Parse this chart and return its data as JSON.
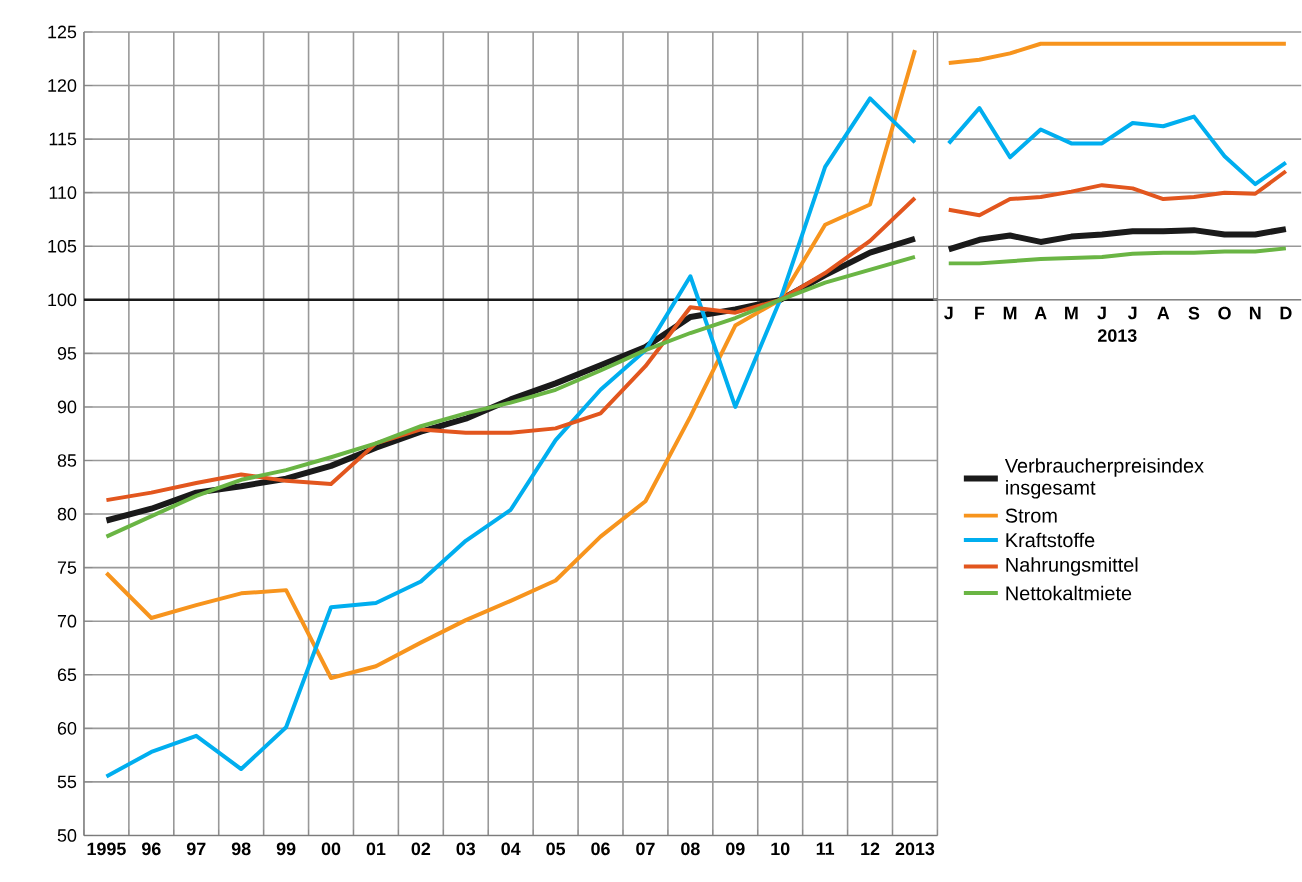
{
  "chart_data": [
    {
      "type": "line",
      "categories": [
        "1995",
        "96",
        "97",
        "98",
        "99",
        "00",
        "01",
        "02",
        "03",
        "04",
        "05",
        "06",
        "07",
        "08",
        "09",
        "10",
        "11",
        "12",
        "2013"
      ],
      "ylim": [
        50,
        125
      ],
      "yticks": [
        50,
        55,
        60,
        65,
        70,
        75,
        80,
        85,
        90,
        95,
        100,
        105,
        110,
        115,
        120,
        125
      ],
      "grid": true,
      "legend": "right",
      "marker": "none",
      "line_style": "solid",
      "ref_lines": [
        {
          "axis": "y",
          "value": 100,
          "color": "#1a1a1a"
        }
      ],
      "series": [
        {
          "name": "Verbraucherpreisindex insgesamt",
          "color": "#1a1a1a",
          "values": [
            79.4,
            80.5,
            82.0,
            82.6,
            83.3,
            84.5,
            86.2,
            87.7,
            88.9,
            90.7,
            92.2,
            93.9,
            95.6,
            98.4,
            99.1,
            100,
            102.3,
            104.4,
            105.7
          ]
        },
        {
          "name": "Strom",
          "color": "#f7941d",
          "values": [
            74.5,
            70.3,
            71.5,
            72.6,
            72.9,
            64.7,
            65.8,
            68.0,
            70.1,
            71.9,
            73.8,
            77.9,
            81.2,
            89.1,
            97.6,
            100,
            107.0,
            108.9,
            123.3
          ]
        },
        {
          "name": "Kraftstoffe",
          "color": "#00aeef",
          "values": [
            55.5,
            57.8,
            59.3,
            56.2,
            60.1,
            71.3,
            71.7,
            73.7,
            77.5,
            80.4,
            86.9,
            91.6,
            95.3,
            102.2,
            90.0,
            100,
            112.4,
            118.8,
            114.7
          ]
        },
        {
          "name": "Nahrungsmittel",
          "color": "#e2561e",
          "values": [
            81.3,
            82.0,
            82.9,
            83.7,
            83.1,
            82.8,
            86.6,
            87.9,
            87.6,
            87.6,
            88.0,
            89.4,
            93.8,
            99.3,
            98.8,
            100,
            102.5,
            105.5,
            109.5
          ]
        },
        {
          "name": "Nettokaltmiete",
          "color": "#6ab544",
          "values": [
            77.9,
            79.8,
            81.7,
            83.2,
            84.1,
            85.3,
            86.6,
            88.2,
            89.4,
            90.4,
            91.6,
            93.4,
            95.3,
            96.9,
            98.3,
            100,
            101.6,
            102.8,
            104.0
          ]
        }
      ]
    },
    {
      "type": "line",
      "categories": [
        "J",
        "F",
        "M",
        "A",
        "M",
        "J",
        "J",
        "A",
        "S",
        "O",
        "N",
        "D"
      ],
      "xlabel": "2013",
      "ylim": [
        100,
        125
      ],
      "yticks": [
        100,
        105,
        110,
        115,
        120,
        125
      ],
      "grid": "y",
      "tick_labels": "x",
      "marker": "none",
      "line_style": "solid",
      "series": [
        {
          "color": "#f7941d",
          "values": [
            122.1,
            122.4,
            123.0,
            123.9,
            123.9,
            123.9,
            123.9,
            123.9,
            123.9,
            123.9,
            123.9,
            123.9
          ]
        },
        {
          "color": "#00aeef",
          "values": [
            114.6,
            117.9,
            113.3,
            115.9,
            114.6,
            114.6,
            116.5,
            116.2,
            117.1,
            113.4,
            110.8,
            112.8
          ]
        },
        {
          "color": "#e2561e",
          "values": [
            108.4,
            107.9,
            109.4,
            109.6,
            110.1,
            110.7,
            110.4,
            109.4,
            109.6,
            110.0,
            109.9,
            112.0
          ]
        },
        {
          "color": "#1a1a1a",
          "values": [
            104.7,
            105.6,
            106.0,
            105.4,
            105.9,
            106.1,
            106.4,
            106.4,
            106.5,
            106.1,
            106.1,
            106.6
          ]
        },
        {
          "color": "#6ab544",
          "values": [
            103.4,
            103.4,
            103.6,
            103.8,
            103.9,
            104.0,
            104.3,
            104.4,
            104.4,
            104.5,
            104.5,
            104.8
          ]
        }
      ]
    }
  ]
}
